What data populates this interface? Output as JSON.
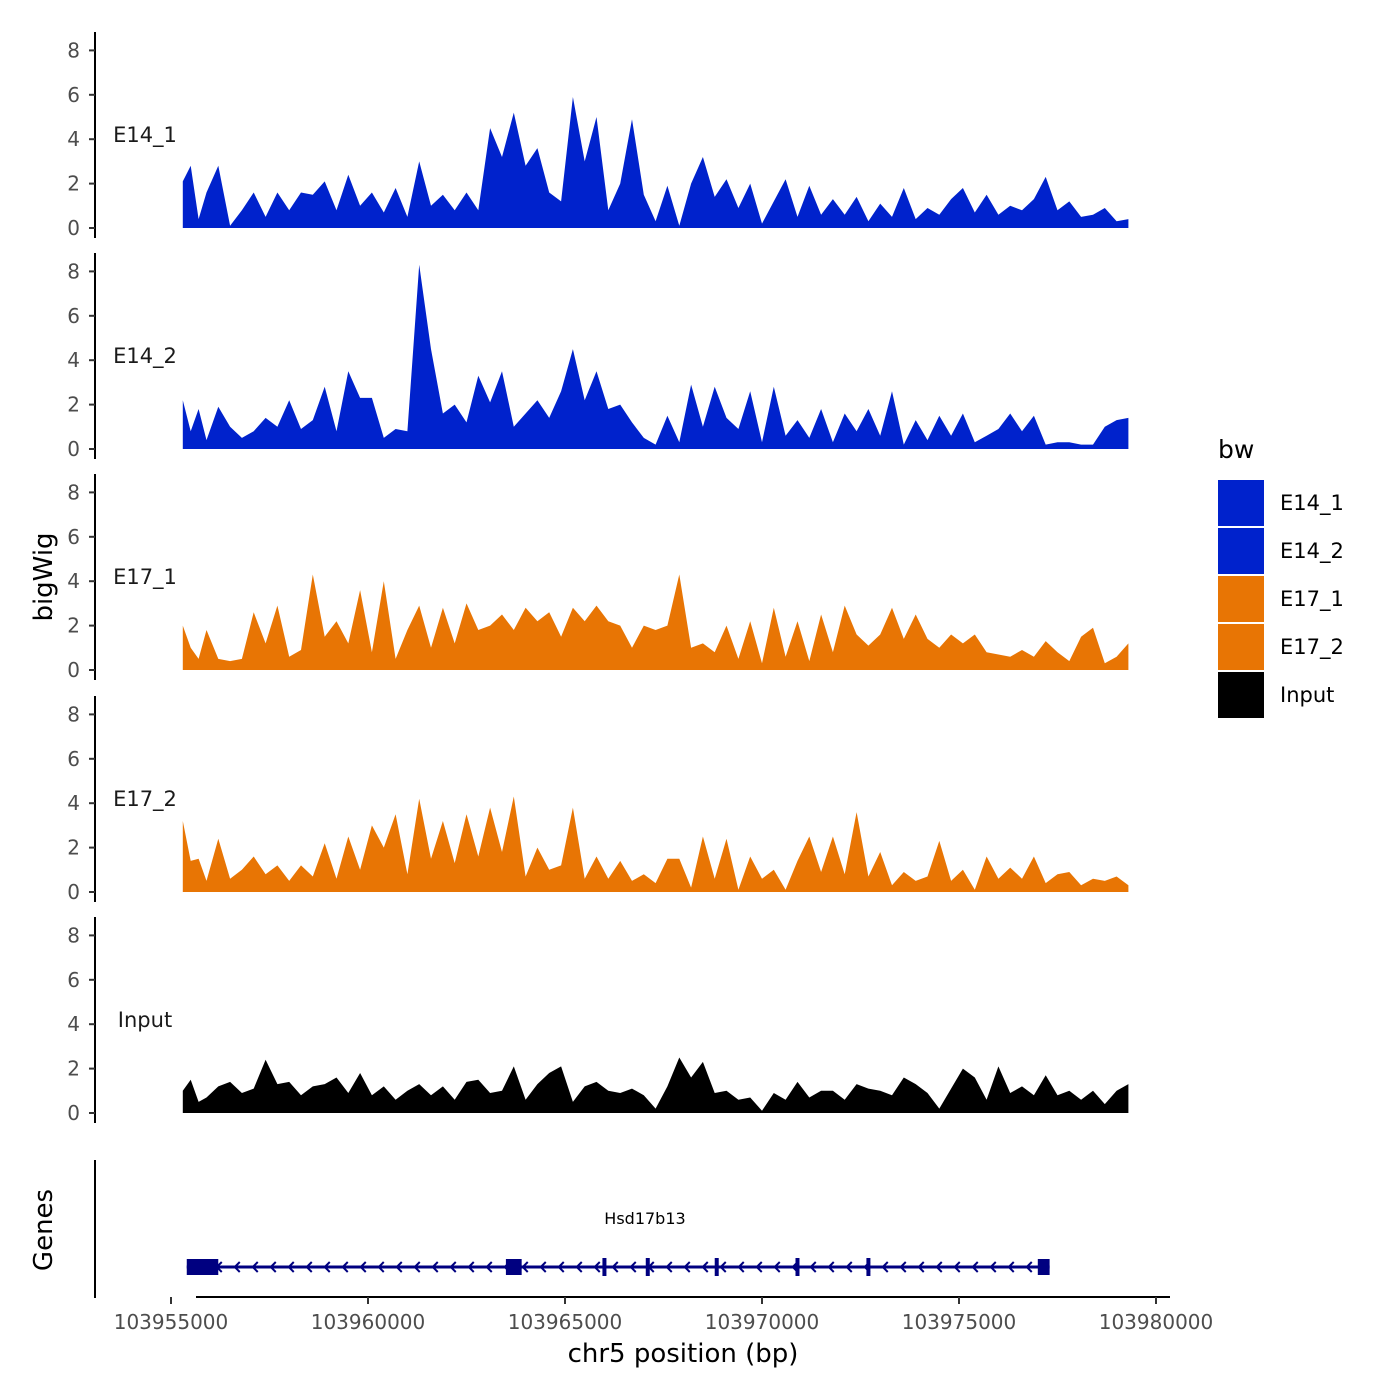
{
  "chart_data": {
    "type": "area",
    "title": "",
    "ylabel": "bigWig",
    "xlabel": "chr5 position (bp)",
    "xlim": [
      103955000,
      103980000
    ],
    "ylim": [
      0,
      8.5
    ],
    "yticks": [
      0,
      2,
      4,
      6,
      8
    ],
    "xtick_labels": [
      "103955000",
      "103960000",
      "103965000",
      "103970000",
      "103975000",
      "103980000"
    ],
    "xtick_values": [
      103955000,
      103960000,
      103965000,
      103970000,
      103975000,
      103980000
    ],
    "legend": {
      "title": "bw",
      "position": "right",
      "entries": [
        {
          "name": "E14_1",
          "color": "#0022cc"
        },
        {
          "name": "E14_2",
          "color": "#0022cc"
        },
        {
          "name": "E17_1",
          "color": "#e87504"
        },
        {
          "name": "E17_2",
          "color": "#e87504"
        },
        {
          "name": "Input",
          "color": "#000000"
        }
      ]
    },
    "tracks_x": [
      103955300,
      103955500,
      103955700,
      103955900,
      103956200,
      103956500,
      103956800,
      103957100,
      103957400,
      103957700,
      103958000,
      103958300,
      103958600,
      103958900,
      103959200,
      103959500,
      103959800,
      103960100,
      103960400,
      103960700,
      103961000,
      103961300,
      103961600,
      103961900,
      103962200,
      103962500,
      103962800,
      103963100,
      103963400,
      103963700,
      103964000,
      103964300,
      103964600,
      103964900,
      103965200,
      103965500,
      103965800,
      103966100,
      103966400,
      103966700,
      103967000,
      103967300,
      103967600,
      103967900,
      103968200,
      103968500,
      103968800,
      103969100,
      103969400,
      103969700,
      103970000,
      103970300,
      103970600,
      103970900,
      103971200,
      103971500,
      103971800,
      103972100,
      103972400,
      103972700,
      103973000,
      103973300,
      103973600,
      103973900,
      103974200,
      103974500,
      103974800,
      103975100,
      103975400,
      103975700,
      103976000,
      103976300,
      103976600,
      103976900,
      103977200,
      103977500,
      103977800,
      103978100,
      103978400,
      103978700,
      103979000,
      103979300
    ],
    "series": [
      {
        "name": "E14_1",
        "color": "#0022cc",
        "values": [
          2.1,
          2.8,
          0.4,
          1.6,
          2.8,
          0.1,
          0.8,
          1.6,
          0.5,
          1.6,
          0.8,
          1.6,
          1.5,
          2.1,
          0.8,
          2.4,
          1.0,
          1.6,
          0.7,
          1.8,
          0.5,
          3.0,
          1.0,
          1.5,
          0.8,
          1.6,
          0.8,
          4.5,
          3.2,
          5.2,
          2.8,
          3.6,
          1.6,
          1.2,
          5.9,
          3.0,
          5.0,
          0.8,
          2.0,
          4.9,
          1.5,
          0.3,
          1.9,
          0.1,
          2.0,
          3.2,
          1.4,
          2.2,
          0.9,
          2.0,
          0.2,
          1.2,
          2.2,
          0.5,
          1.9,
          0.6,
          1.3,
          0.6,
          1.4,
          0.3,
          1.1,
          0.5,
          1.8,
          0.4,
          0.9,
          0.6,
          1.3,
          1.8,
          0.7,
          1.5,
          0.6,
          1.0,
          0.8,
          1.3,
          2.3,
          0.8,
          1.2,
          0.5,
          0.6,
          0.9,
          0.3,
          0.4
        ]
      },
      {
        "name": "E14_2",
        "color": "#0022cc",
        "values": [
          2.2,
          0.8,
          1.8,
          0.4,
          1.9,
          1.0,
          0.5,
          0.8,
          1.4,
          1.0,
          2.2,
          0.9,
          1.3,
          2.8,
          0.8,
          3.5,
          2.3,
          2.3,
          0.5,
          0.9,
          0.8,
          8.3,
          4.5,
          1.6,
          2.0,
          1.2,
          3.3,
          2.1,
          3.5,
          1.0,
          1.6,
          2.2,
          1.4,
          2.6,
          4.5,
          2.2,
          3.5,
          1.8,
          2.0,
          1.2,
          0.5,
          0.2,
          1.5,
          0.3,
          2.9,
          1.0,
          2.8,
          1.4,
          0.9,
          2.6,
          0.3,
          2.8,
          0.6,
          1.3,
          0.5,
          1.8,
          0.3,
          1.6,
          0.8,
          1.8,
          0.6,
          2.6,
          0.2,
          1.3,
          0.4,
          1.5,
          0.6,
          1.6,
          0.3,
          0.6,
          0.9,
          1.6,
          0.8,
          1.5,
          0.2,
          0.3,
          0.3,
          0.2,
          0.2,
          1.0,
          1.3,
          1.4
        ]
      },
      {
        "name": "E17_1",
        "color": "#e87504",
        "values": [
          2.0,
          1.0,
          0.5,
          1.8,
          0.5,
          0.4,
          0.5,
          2.6,
          1.2,
          2.9,
          0.6,
          0.9,
          4.3,
          1.5,
          2.2,
          1.2,
          3.6,
          0.8,
          4.0,
          0.5,
          1.8,
          2.9,
          1.0,
          2.8,
          1.2,
          3.0,
          1.8,
          2.0,
          2.5,
          1.8,
          2.8,
          2.2,
          2.6,
          1.5,
          2.8,
          2.2,
          2.9,
          2.2,
          2.0,
          1.0,
          2.0,
          1.8,
          2.0,
          4.3,
          1.0,
          1.2,
          0.8,
          2.0,
          0.5,
          2.2,
          0.3,
          2.8,
          0.6,
          2.2,
          0.4,
          2.5,
          0.8,
          2.9,
          1.6,
          1.1,
          1.6,
          2.8,
          1.4,
          2.5,
          1.4,
          1.0,
          1.6,
          1.2,
          1.6,
          0.8,
          0.7,
          0.6,
          0.9,
          0.6,
          1.3,
          0.8,
          0.4,
          1.5,
          1.9,
          0.3,
          0.6,
          1.2
        ]
      },
      {
        "name": "E17_2",
        "color": "#e87504",
        "values": [
          3.2,
          1.4,
          1.5,
          0.5,
          2.4,
          0.6,
          1.0,
          1.6,
          0.8,
          1.2,
          0.5,
          1.2,
          0.7,
          2.2,
          0.6,
          2.5,
          1.0,
          3.0,
          2.0,
          3.5,
          0.8,
          4.2,
          1.5,
          3.2,
          1.3,
          3.5,
          1.6,
          3.8,
          1.8,
          4.3,
          0.7,
          2.0,
          1.0,
          1.2,
          3.8,
          0.6,
          1.6,
          0.6,
          1.4,
          0.5,
          0.8,
          0.4,
          1.5,
          1.5,
          0.2,
          2.5,
          0.6,
          2.4,
          0.1,
          1.6,
          0.6,
          1.0,
          0.1,
          1.4,
          2.5,
          0.9,
          2.5,
          0.8,
          3.6,
          0.7,
          1.8,
          0.3,
          0.9,
          0.5,
          0.7,
          2.3,
          0.5,
          1.0,
          0.1,
          1.6,
          0.6,
          1.1,
          0.6,
          1.6,
          0.4,
          0.8,
          0.9,
          0.3,
          0.6,
          0.5,
          0.7,
          0.3
        ]
      },
      {
        "name": "Input",
        "color": "#000000",
        "values": [
          1.0,
          1.5,
          0.5,
          0.7,
          1.2,
          1.4,
          0.9,
          1.1,
          2.4,
          1.3,
          1.4,
          0.8,
          1.2,
          1.3,
          1.6,
          0.9,
          1.8,
          0.8,
          1.2,
          0.6,
          1.0,
          1.3,
          0.8,
          1.2,
          0.6,
          1.4,
          1.5,
          0.9,
          1.0,
          2.1,
          0.6,
          1.3,
          1.8,
          2.1,
          0.5,
          1.2,
          1.4,
          1.0,
          0.9,
          1.1,
          0.8,
          0.2,
          1.2,
          2.5,
          1.6,
          2.3,
          0.9,
          1.0,
          0.6,
          0.7,
          0.1,
          0.9,
          0.6,
          1.4,
          0.7,
          1.0,
          1.0,
          0.6,
          1.3,
          1.1,
          1.0,
          0.8,
          1.6,
          1.3,
          0.9,
          0.2,
          1.1,
          2.0,
          1.6,
          0.6,
          2.1,
          0.9,
          1.2,
          0.8,
          1.7,
          0.8,
          1.0,
          0.6,
          1.0,
          0.4,
          1.0,
          1.3
        ]
      }
    ],
    "gene_track": {
      "label": "Genes",
      "gene_name": "Hsd17b13",
      "strand": "-",
      "start": 103955400,
      "end": 103977300,
      "color": "#000080",
      "exons": [
        [
          103955400,
          103956200
        ],
        [
          103963500,
          103963900
        ],
        [
          103965950,
          103966050
        ],
        [
          103967050,
          103967150
        ],
        [
          103968800,
          103968900
        ],
        [
          103970850,
          103970950
        ],
        [
          103972650,
          103972750
        ],
        [
          103977000,
          103977300
        ]
      ]
    }
  }
}
